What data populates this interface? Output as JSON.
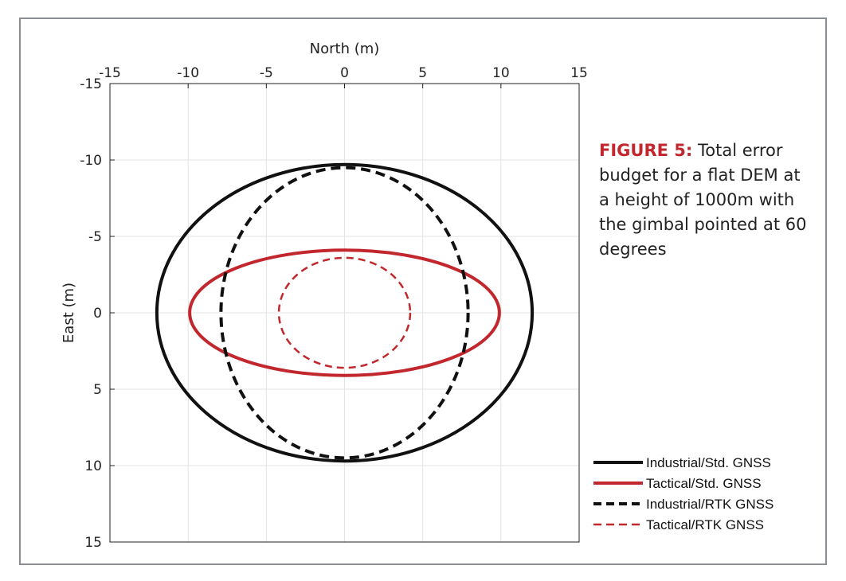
{
  "caption": {
    "label": "FIGURE 5:",
    "text": "Total error budget for a flat DEM at a height of 1000m with the gimbal pointed at 60 degrees"
  },
  "chart_data": {
    "type": "line",
    "xlabel": "North (m)",
    "ylabel": "East (m)",
    "xlim": [
      -15,
      15
    ],
    "ylim": [
      -15,
      15
    ],
    "y_reversed": true,
    "x_axis_position": "top",
    "xticks": [
      -15,
      -10,
      -5,
      0,
      5,
      10,
      15
    ],
    "yticks": [
      -15,
      -10,
      -5,
      0,
      5,
      10,
      15
    ],
    "grid": true,
    "legend_position": "bottom-right",
    "series": [
      {
        "name": "Industrial/Std. GNSS",
        "shape": "ellipse",
        "center": [
          0,
          0
        ],
        "semi_axis_north": 12.0,
        "semi_axis_east": 9.7,
        "color": "#111111",
        "dash": "solid"
      },
      {
        "name": "Tactical/Std. GNSS",
        "shape": "ellipse",
        "center": [
          0,
          0
        ],
        "semi_axis_north": 9.9,
        "semi_axis_east": 4.1,
        "color": "#c1272d",
        "dash": "solid"
      },
      {
        "name": "Industrial/RTK GNSS",
        "shape": "ellipse",
        "center": [
          0,
          0
        ],
        "semi_axis_north": 7.9,
        "semi_axis_east": 9.5,
        "color": "#111111",
        "dash": "dashed"
      },
      {
        "name": "Tactical/RTK GNSS",
        "shape": "ellipse",
        "center": [
          0,
          0
        ],
        "semi_axis_north": 4.2,
        "semi_axis_east": 3.6,
        "color": "#c1272d",
        "dash": "dashed"
      }
    ]
  }
}
